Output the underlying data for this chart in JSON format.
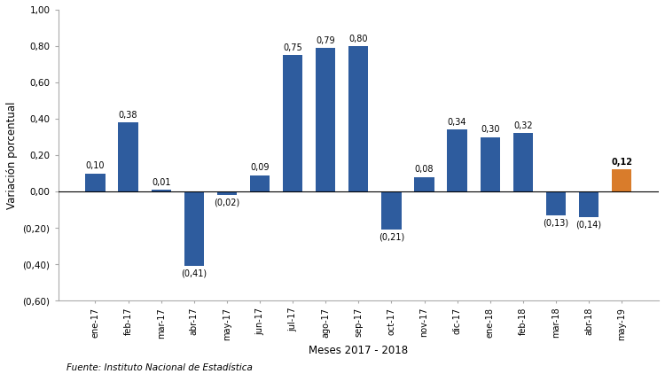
{
  "categories": [
    "ene-17",
    "feb-17",
    "mar-17",
    "abr-17",
    "may-17",
    "jun-17",
    "jul-17",
    "ago-17",
    "sep-17",
    "oct-17",
    "nov-17",
    "dic-17",
    "ene-18",
    "feb-18",
    "mar-18",
    "abr-18",
    "may-19"
  ],
  "values": [
    0.1,
    0.38,
    0.01,
    -0.41,
    -0.02,
    0.09,
    0.75,
    0.79,
    0.8,
    -0.21,
    0.08,
    0.34,
    0.3,
    0.32,
    -0.13,
    -0.14,
    0.12
  ],
  "bar_colors": [
    "#2e5c9e",
    "#2e5c9e",
    "#2e5c9e",
    "#2e5c9e",
    "#2e5c9e",
    "#2e5c9e",
    "#2e5c9e",
    "#2e5c9e",
    "#2e5c9e",
    "#2e5c9e",
    "#2e5c9e",
    "#2e5c9e",
    "#2e5c9e",
    "#2e5c9e",
    "#2e5c9e",
    "#2e5c9e",
    "#d97c2b"
  ],
  "labels": [
    "0,10",
    "0,38",
    "0,01",
    "(0,41)",
    "(0,02)",
    "0,09",
    "0,75",
    "0,79",
    "0,80",
    "(0,21)",
    "0,08",
    "0,34",
    "0,30",
    "0,32",
    "(0,13)",
    "(0,14)",
    "0,12"
  ],
  "xlabel": "Meses 2017 - 2018",
  "ylabel": "Variación porcentual",
  "ylim": [
    -0.6,
    1.0
  ],
  "yticks": [
    -0.6,
    -0.4,
    -0.2,
    0.0,
    0.2,
    0.4,
    0.6,
    0.8,
    1.0
  ],
  "ytick_labels": [
    "(0,60)",
    "(0,40)",
    "(0,20)",
    "0,00",
    "0,20",
    "0,40",
    "0,60",
    "0,80",
    "1,00"
  ],
  "source": "Fuente: Instituto Nacional de Estadística",
  "background_color": "#ffffff",
  "last_bar_bold": true
}
